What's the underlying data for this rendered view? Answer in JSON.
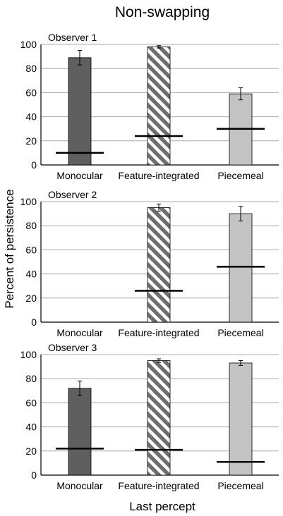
{
  "figure": {
    "title": "Non-swapping",
    "ylabel": "Percent of persistence",
    "xlabel": "Last percept"
  },
  "colors": {
    "monocular": "#5f5f5f",
    "feature_stripe": "#6e6e6e",
    "piecemeal": "#c3c3c3",
    "grid": "#a8a8a8",
    "bar_edge": "#000000",
    "baseline_line": "#000000"
  },
  "chart_data": [
    {
      "type": "bar",
      "title": "Observer 1",
      "categories": [
        "Monocular",
        "Feature-integrated",
        "Piecemeal"
      ],
      "values": [
        89,
        98,
        59
      ],
      "errors": [
        6,
        1,
        5
      ],
      "baselines": [
        10,
        24,
        30
      ],
      "ylim": [
        0,
        100
      ],
      "yticks": [
        0,
        20,
        40,
        60,
        80,
        100
      ],
      "grid": true,
      "patterns": [
        "solid",
        "diagonal-stripes",
        "solid"
      ]
    },
    {
      "type": "bar",
      "title": "Observer 2",
      "categories": [
        "Monocular",
        "Feature-integrated",
        "Piecemeal"
      ],
      "values": [
        null,
        95,
        90
      ],
      "errors": [
        null,
        3,
        6
      ],
      "baselines": [
        null,
        26,
        46
      ],
      "ylim": [
        0,
        100
      ],
      "yticks": [
        0,
        20,
        40,
        60,
        80,
        100
      ],
      "grid": true,
      "patterns": [
        "solid",
        "diagonal-stripes",
        "solid"
      ]
    },
    {
      "type": "bar",
      "title": "Observer 3",
      "categories": [
        "Monocular",
        "Feature-integrated",
        "Piecemeal"
      ],
      "values": [
        72,
        95,
        93
      ],
      "errors": [
        6,
        1.5,
        2
      ],
      "baselines": [
        22,
        21,
        11
      ],
      "ylim": [
        0,
        100
      ],
      "yticks": [
        0,
        20,
        40,
        60,
        80,
        100
      ],
      "grid": true,
      "patterns": [
        "solid",
        "diagonal-stripes",
        "solid"
      ]
    }
  ]
}
